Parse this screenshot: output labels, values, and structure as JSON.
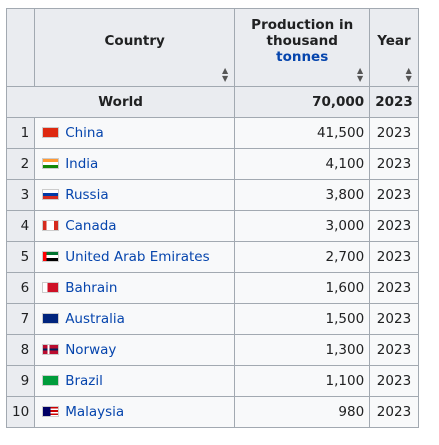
{
  "header": {
    "country": "Country",
    "production": [
      "Production in",
      "thousand",
      "tonnes"
    ],
    "year": "Year"
  },
  "world": {
    "country": "World",
    "production": "70,000",
    "year": "2023"
  },
  "rows": [
    [
      "1",
      "China",
      "41,500",
      "2023"
    ],
    [
      "2",
      "India",
      "4,100",
      "2023"
    ],
    [
      "3",
      "Russia",
      "3,800",
      "2023"
    ],
    [
      "4",
      "Canada",
      "3,000",
      "2023"
    ],
    [
      "5",
      "United Arab Emirates",
      "2,700",
      "2023"
    ],
    [
      "6",
      "Bahrain",
      "1,600",
      "2023"
    ],
    [
      "7",
      "Australia",
      "1,500",
      "2023"
    ],
    [
      "8",
      "Norway",
      "1,300",
      "2023"
    ],
    [
      "9",
      "Brazil",
      "1,100",
      "2023"
    ],
    [
      "10",
      "Malaysia",
      "980",
      "2023"
    ]
  ]
}
